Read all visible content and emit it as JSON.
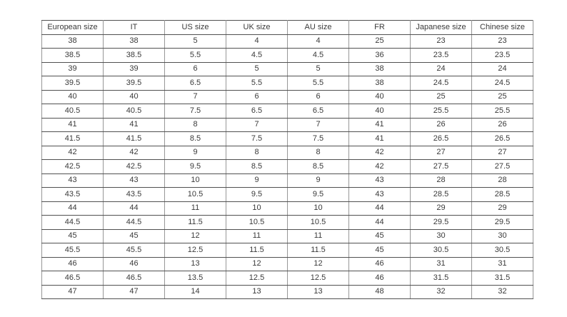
{
  "chart_data": {
    "type": "table",
    "title": "",
    "columns": [
      "European size",
      "IT",
      "US size",
      "UK size",
      "AU size",
      "FR",
      "Japanese size",
      "Chinese size"
    ],
    "rows": [
      [
        "38",
        "38",
        "5",
        "4",
        "4",
        "25",
        "23",
        "23"
      ],
      [
        "38.5",
        "38.5",
        "5.5",
        "4.5",
        "4.5",
        "36",
        "23.5",
        "23.5"
      ],
      [
        "39",
        "39",
        "6",
        "5",
        "5",
        "38",
        "24",
        "24"
      ],
      [
        "39.5",
        "39.5",
        "6.5",
        "5.5",
        "5.5",
        "38",
        "24.5",
        "24.5"
      ],
      [
        "40",
        "40",
        "7",
        "6",
        "6",
        "40",
        "25",
        "25"
      ],
      [
        "40.5",
        "40.5",
        "7.5",
        "6.5",
        "6.5",
        "40",
        "25.5",
        "25.5"
      ],
      [
        "41",
        "41",
        "8",
        "7",
        "7",
        "41",
        "26",
        "26"
      ],
      [
        "41.5",
        "41.5",
        "8.5",
        "7.5",
        "7.5",
        "41",
        "26.5",
        "26.5"
      ],
      [
        "42",
        "42",
        "9",
        "8",
        "8",
        "42",
        "27",
        "27"
      ],
      [
        "42.5",
        "42.5",
        "9.5",
        "8.5",
        "8.5",
        "42",
        "27.5",
        "27.5"
      ],
      [
        "43",
        "43",
        "10",
        "9",
        "9",
        "43",
        "28",
        "28"
      ],
      [
        "43.5",
        "43.5",
        "10.5",
        "9.5",
        "9.5",
        "43",
        "28.5",
        "28.5"
      ],
      [
        "44",
        "44",
        "11",
        "10",
        "10",
        "44",
        "29",
        "29"
      ],
      [
        "44.5",
        "44.5",
        "11.5",
        "10.5",
        "10.5",
        "44",
        "29.5",
        "29.5"
      ],
      [
        "45",
        "45",
        "12",
        "11",
        "11",
        "45",
        "30",
        "30"
      ],
      [
        "45.5",
        "45.5",
        "12.5",
        "11.5",
        "11.5",
        "45",
        "30.5",
        "30.5"
      ],
      [
        "46",
        "46",
        "13",
        "12",
        "12",
        "46",
        "31",
        "31"
      ],
      [
        "46.5",
        "46.5",
        "13.5",
        "12.5",
        "12.5",
        "46",
        "31.5",
        "31.5"
      ],
      [
        "47",
        "47",
        "14",
        "13",
        "13",
        "48",
        "32",
        "32"
      ]
    ]
  },
  "colors": {
    "background": "#ffffff",
    "text": "#3a3a3a",
    "border_horizontal": "#515151",
    "border_vertical": "#979797"
  }
}
